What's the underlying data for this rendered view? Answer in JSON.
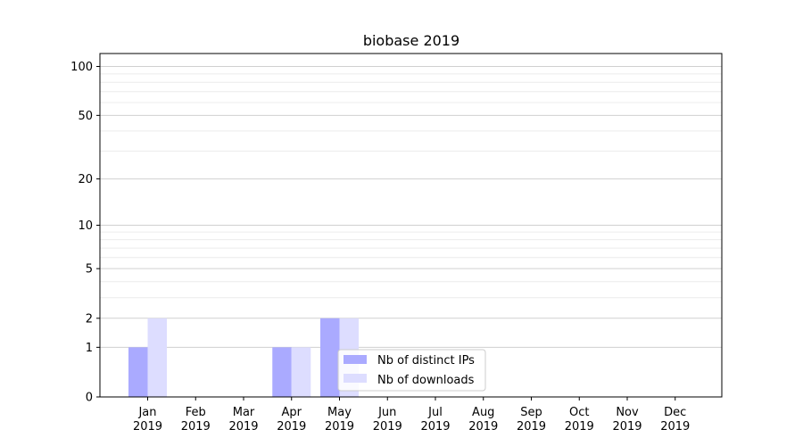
{
  "chart_data": {
    "type": "bar",
    "title": "biobase 2019",
    "xlabel": "",
    "ylabel": "",
    "y_scale": "symlog",
    "ylim": [
      0,
      120
    ],
    "y_ticks": [
      0,
      1,
      2,
      5,
      10,
      20,
      50,
      100
    ],
    "grid": "horizontal",
    "legend_position": "lower-center",
    "categories": [
      {
        "month": "Jan",
        "year": "2019"
      },
      {
        "month": "Feb",
        "year": "2019"
      },
      {
        "month": "Mar",
        "year": "2019"
      },
      {
        "month": "Apr",
        "year": "2019"
      },
      {
        "month": "May",
        "year": "2019"
      },
      {
        "month": "Jun",
        "year": "2019"
      },
      {
        "month": "Jul",
        "year": "2019"
      },
      {
        "month": "Aug",
        "year": "2019"
      },
      {
        "month": "Sep",
        "year": "2019"
      },
      {
        "month": "Oct",
        "year": "2019"
      },
      {
        "month": "Nov",
        "year": "2019"
      },
      {
        "month": "Dec",
        "year": "2019"
      }
    ],
    "series": [
      {
        "name": "Nb of distinct IPs",
        "color": "#aaaaff",
        "values": [
          1,
          0,
          0,
          1,
          2,
          0,
          0,
          0,
          0,
          0,
          0,
          0
        ]
      },
      {
        "name": "Nb of downloads",
        "color": "#ddddff",
        "values": [
          2,
          0,
          0,
          1,
          2,
          0,
          0,
          0,
          0,
          0,
          0,
          0
        ]
      }
    ]
  }
}
